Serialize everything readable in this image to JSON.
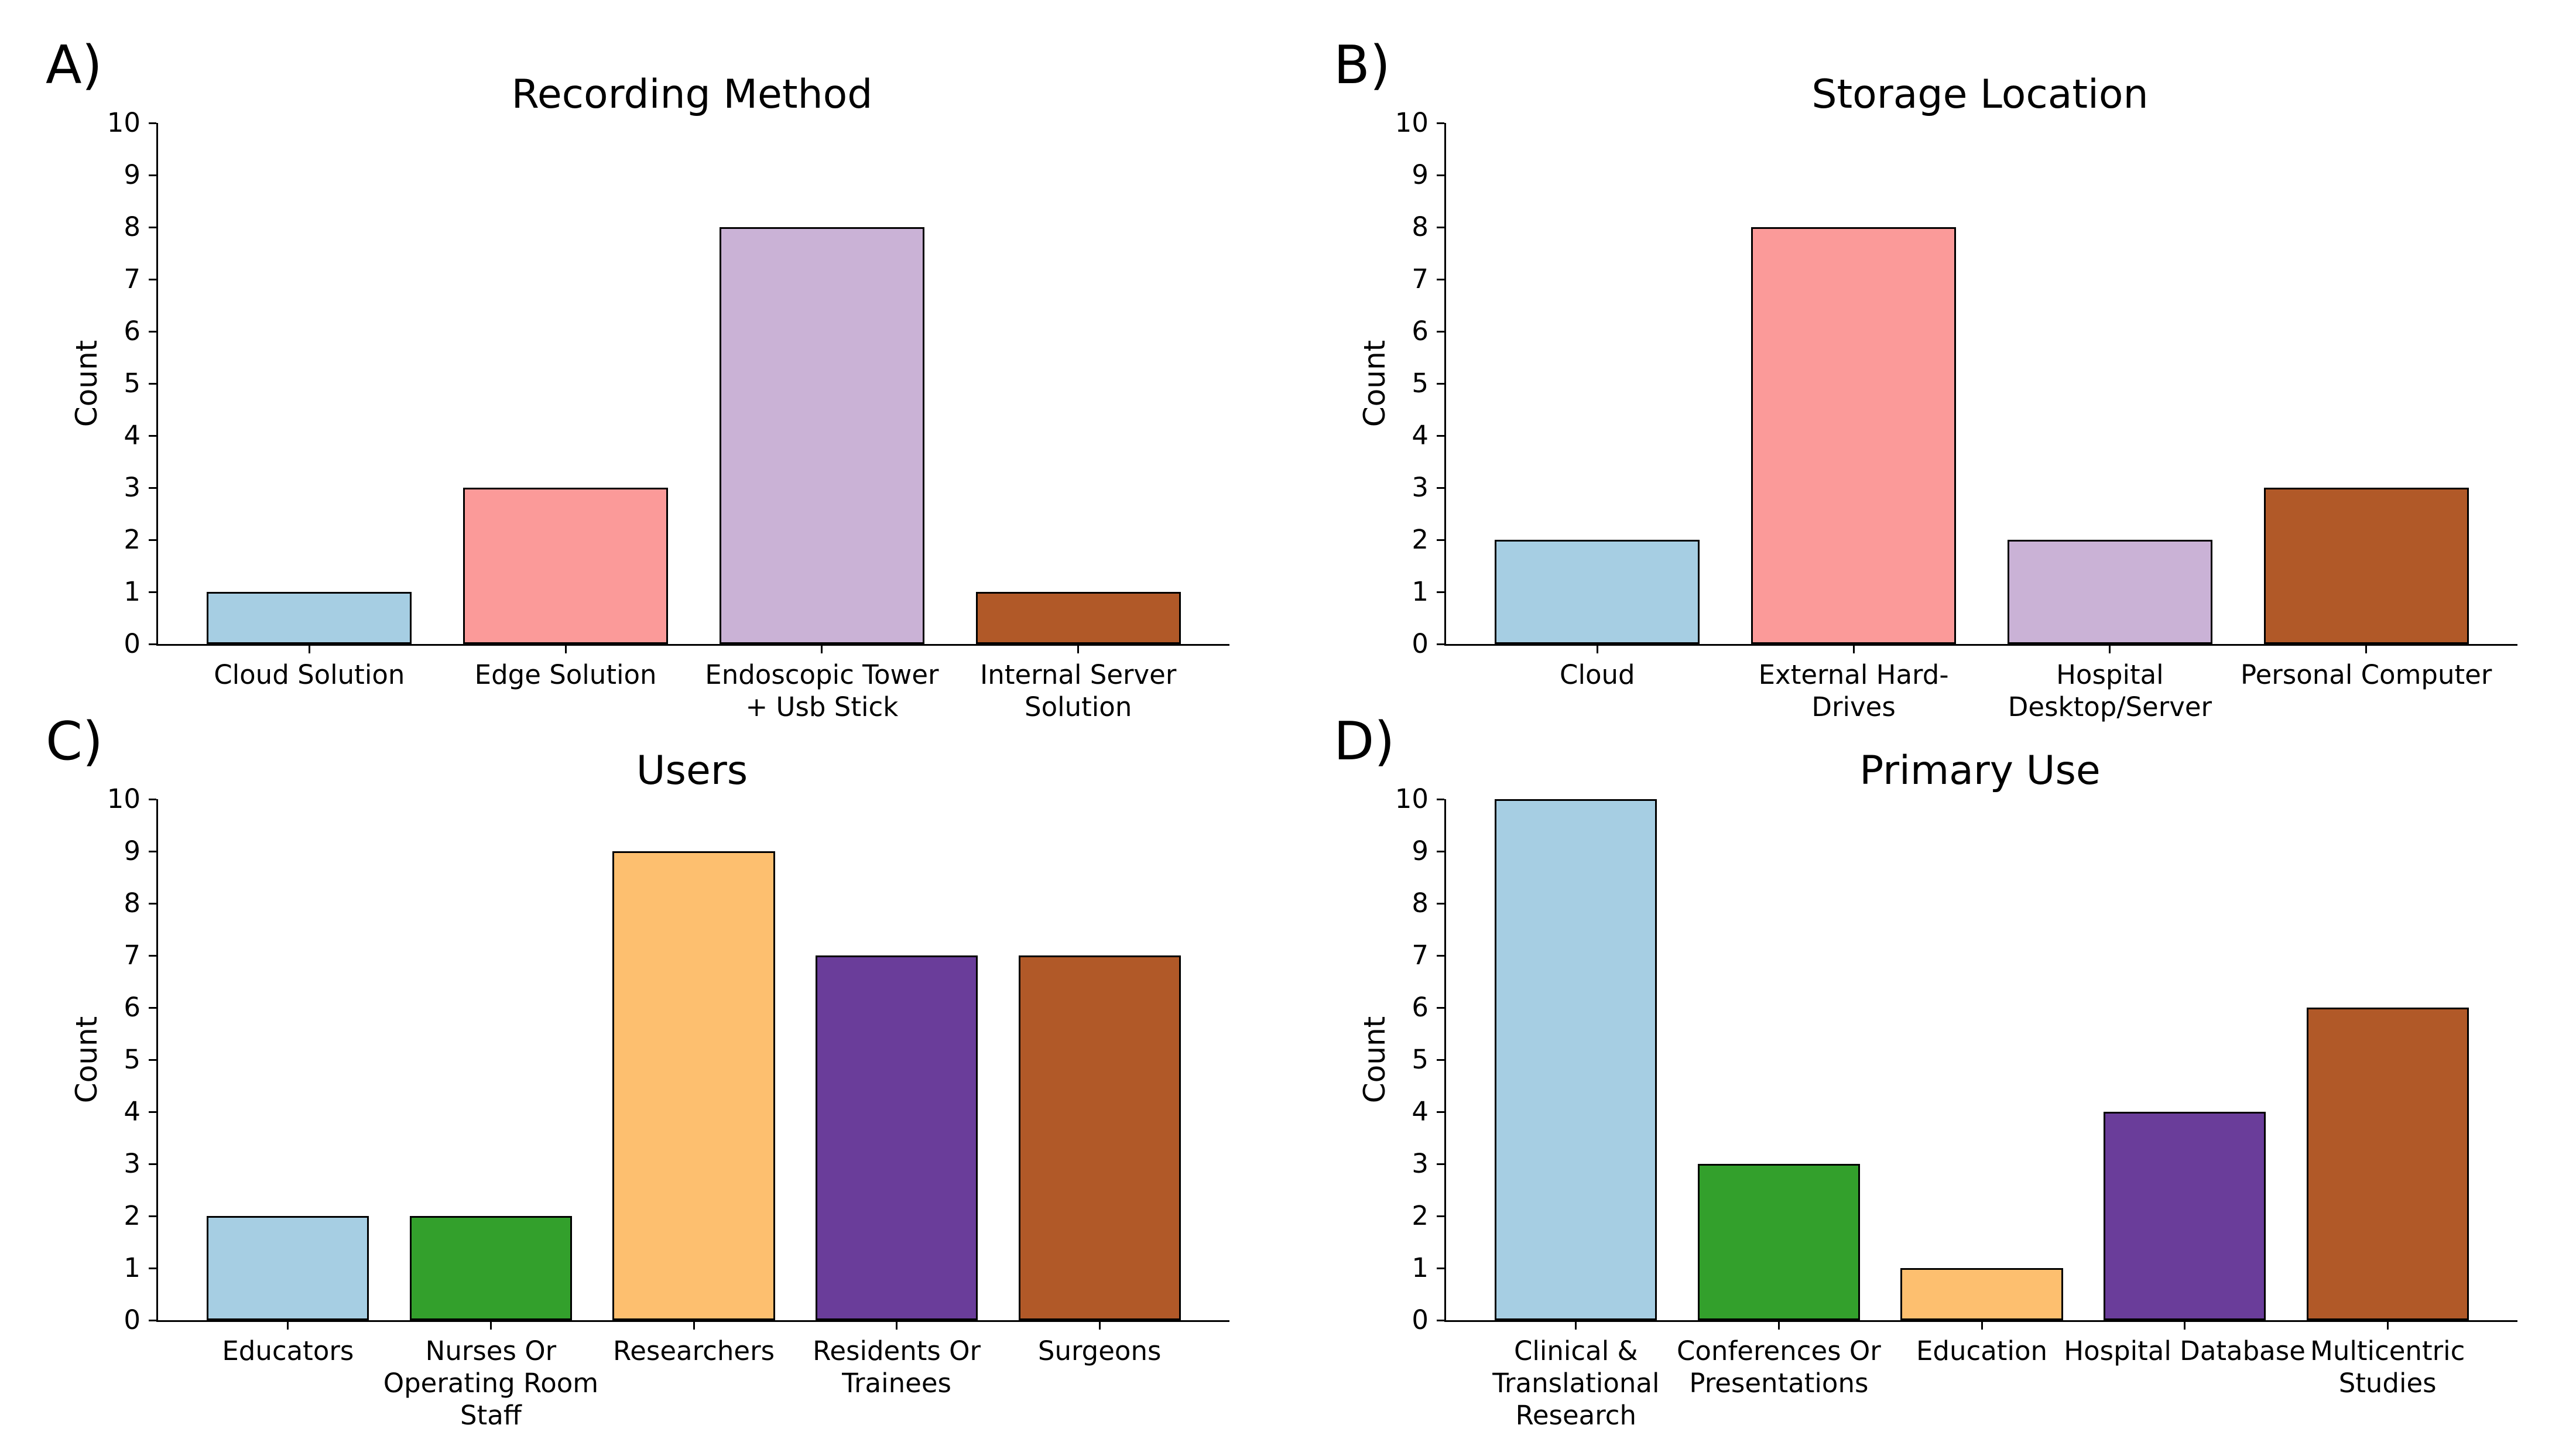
{
  "figure": {
    "background_color": "#FFFFFF",
    "axis_color": "#000000",
    "text_color": "#000000"
  },
  "chart_data": [
    {
      "type": "bar",
      "panel_letter": "A)",
      "title": "Recording Method",
      "xlabel": "",
      "ylabel": "Count",
      "ylim": [
        0,
        10
      ],
      "ytick_step": 1,
      "grid": false,
      "legend": "none",
      "categories": [
        "Cloud Solution",
        "Edge Solution",
        "Endoscopic Tower + Usb Stick",
        "Internal Server Solution"
      ],
      "category_lines": [
        [
          "Cloud Solution"
        ],
        [
          "Edge Solution"
        ],
        [
          "Endoscopic Tower",
          "+ Usb Stick"
        ],
        [
          "Internal Server",
          "Solution"
        ]
      ],
      "values": [
        1,
        3,
        8,
        1
      ],
      "bar_colors": [
        "#A6CEE3",
        "#FB9A99",
        "#CAB2D6",
        "#B15928"
      ],
      "bar_edge_color": "#000000"
    },
    {
      "type": "bar",
      "panel_letter": "B)",
      "title": "Storage Location",
      "xlabel": "",
      "ylabel": "Count",
      "ylim": [
        0,
        10
      ],
      "ytick_step": 1,
      "grid": false,
      "legend": "none",
      "categories": [
        "Cloud",
        "External Hard-Drives",
        "Hospital Desktop/Server",
        "Personal Computer"
      ],
      "category_lines": [
        [
          "Cloud"
        ],
        [
          "External Hard-",
          "Drives"
        ],
        [
          "Hospital",
          "Desktop/Server"
        ],
        [
          "Personal Computer"
        ]
      ],
      "values": [
        2,
        8,
        2,
        3
      ],
      "bar_colors": [
        "#A6CEE3",
        "#FB9A99",
        "#CAB2D6",
        "#B15928"
      ],
      "bar_edge_color": "#000000"
    },
    {
      "type": "bar",
      "panel_letter": "C)",
      "title": "Users",
      "xlabel": "",
      "ylabel": "Count",
      "ylim": [
        0,
        10
      ],
      "ytick_step": 1,
      "grid": false,
      "legend": "none",
      "categories": [
        "Educators",
        "Nurses Or Operating Room Staff",
        "Researchers",
        "Residents Or Trainees",
        "Surgeons"
      ],
      "category_lines": [
        [
          "Educators"
        ],
        [
          "Nurses Or",
          "Operating Room",
          "Staff"
        ],
        [
          "Researchers"
        ],
        [
          "Residents Or",
          "Trainees"
        ],
        [
          "Surgeons"
        ]
      ],
      "values": [
        2,
        2,
        9,
        7,
        7
      ],
      "bar_colors": [
        "#A6CEE3",
        "#33A02C",
        "#FDBF6F",
        "#6A3D9A",
        "#B15928"
      ],
      "bar_edge_color": "#000000"
    },
    {
      "type": "bar",
      "panel_letter": "D)",
      "title": "Primary Use",
      "xlabel": "",
      "ylabel": "Count",
      "ylim": [
        0,
        10
      ],
      "ytick_step": 1,
      "grid": false,
      "legend": "none",
      "categories": [
        "Clinical & Translational Research",
        "Conferences Or Presentations",
        "Education",
        "Hospital Database",
        "Multicentric Studies"
      ],
      "category_lines": [
        [
          "Clinical &",
          "Translational",
          "Research"
        ],
        [
          "Conferences Or",
          "Presentations"
        ],
        [
          "Education"
        ],
        [
          "Hospital Database"
        ],
        [
          "Multicentric",
          "Studies"
        ]
      ],
      "values": [
        10,
        3,
        1,
        4,
        6
      ],
      "bar_colors": [
        "#A6CEE3",
        "#33A02C",
        "#FDBF6F",
        "#6A3D9A",
        "#B15928"
      ],
      "bar_edge_color": "#000000"
    }
  ]
}
